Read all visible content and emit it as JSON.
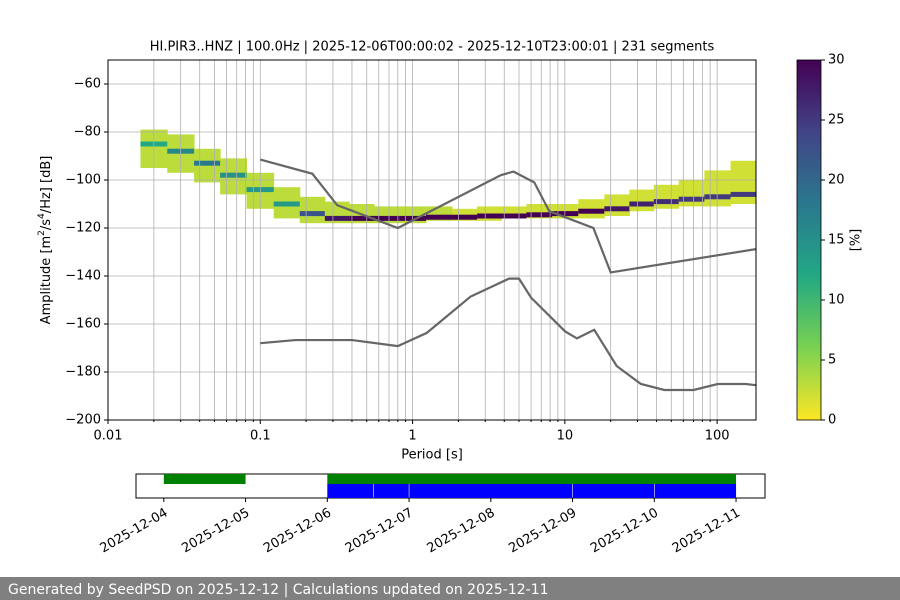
{
  "chart_data": [
    {
      "type": "ppsd",
      "title": "HI.PIR3..HNZ | 100.0Hz | 2025-12-06T00:00:02 - 2025-12-10T23:00:01 | 231 segments",
      "xlabel": "Period [s]",
      "ylabel": [
        "Amplitude [m",
        "2",
        "/s",
        "4",
        "/Hz] [dB]"
      ],
      "log_x": true,
      "grid": true,
      "xlim": [
        0.01,
        180
      ],
      "ylim": [
        -200,
        -50
      ],
      "xticks": [
        0.01,
        0.1,
        1,
        10,
        100
      ],
      "xminorticks": [
        0.02,
        0.03,
        0.04,
        0.05,
        0.06,
        0.07,
        0.08,
        0.09,
        0.2,
        0.3,
        0.4,
        0.5,
        0.6,
        0.7,
        0.8,
        0.9,
        2,
        3,
        4,
        5,
        6,
        7,
        8,
        9,
        20,
        30,
        40,
        50,
        60,
        70,
        80,
        90
      ],
      "yticks": [
        {
          "value": -200,
          "label": "−200"
        },
        {
          "value": -180,
          "label": "−180"
        },
        {
          "value": -160,
          "label": "−160"
        },
        {
          "value": -140,
          "label": "−140"
        },
        {
          "value": -120,
          "label": "−120"
        },
        {
          "value": -100,
          "label": "−100"
        },
        {
          "value": -80,
          "label": "−80"
        },
        {
          "value": -60,
          "label": "−60"
        }
      ],
      "colormap": [
        "#fde725",
        "#7ad151",
        "#22a884",
        "#2a788e",
        "#414487",
        "#440154"
      ],
      "colorbar": {
        "label": "[%]",
        "clim": [
          0,
          30
        ],
        "ticks": [
          0,
          5,
          10,
          15,
          20,
          25,
          30
        ]
      },
      "heatmap": {
        "periods": [
          0.02,
          0.03,
          0.045,
          0.066,
          0.1,
          0.15,
          0.22,
          0.32,
          0.46,
          0.68,
          1,
          1.5,
          2.2,
          3.2,
          4.6,
          6.8,
          10,
          15,
          22,
          32,
          46,
          68,
          100,
          150
        ],
        "low": [
          -95,
          -97,
          -101,
          -106,
          -112,
          -116,
          -118,
          -118,
          -118,
          -118,
          -118,
          -117,
          -117,
          -117,
          -116,
          -116,
          -116,
          -116,
          -115,
          -113,
          -112,
          -111,
          -111,
          -110
        ],
        "high": [
          -79,
          -81,
          -87,
          -91,
          -97,
          -103,
          -107,
          -109,
          -110,
          -111,
          -111,
          -111,
          -112,
          -111,
          -111,
          -110,
          -110,
          -108,
          -106,
          -104,
          -102,
          -100,
          -96,
          -92
        ],
        "band_pct": [
          3,
          3,
          3,
          3,
          3,
          3,
          3,
          3,
          3,
          3,
          3,
          3,
          2,
          2,
          2,
          2,
          2,
          2,
          2,
          2,
          2,
          2,
          2,
          2
        ],
        "mode": [
          -85,
          -88,
          -93,
          -98,
          -104,
          -110,
          -114,
          -116,
          -116,
          -116,
          -116,
          -115.5,
          -115.5,
          -115,
          -115,
          -114.5,
          -114,
          -113,
          -112,
          -110,
          -109,
          -108,
          -107,
          -106
        ],
        "mode_pct": [
          12,
          16,
          18,
          15,
          14,
          14,
          22,
          28,
          30,
          30,
          30,
          30,
          30,
          30,
          30,
          30,
          30,
          30,
          28,
          27,
          26,
          25,
          25,
          25
        ]
      },
      "series": [
        {
          "color": "#666666",
          "x": [
            0.1,
            0.22,
            0.32,
            0.8,
            3.8,
            4.6,
            6.3,
            7.9,
            15.4,
            20,
            180
          ],
          "values": [
            -91.5,
            -97.4,
            -110.5,
            -120,
            -98,
            -96.5,
            -101,
            -113,
            -120,
            -138.5,
            -128.8
          ]
        },
        {
          "color": "#666666",
          "x": [
            0.1,
            0.17,
            0.4,
            0.8,
            1.24,
            2.4,
            4.3,
            5,
            6,
            10,
            12,
            15.6,
            21.9,
            31.6,
            45,
            70,
            101,
            154,
            180
          ],
          "values": [
            -168,
            -166.7,
            -166.7,
            -169.2,
            -163.7,
            -148.6,
            -141.1,
            -141.1,
            -149,
            -163,
            -166,
            -162.4,
            -177.5,
            -185,
            -187.5,
            -187.5,
            -185,
            -185,
            -185.5
          ]
        }
      ]
    },
    {
      "type": "timeline",
      "xlim": [
        "2025-12-03T15:50",
        "2025-12-11T08:30"
      ],
      "xticks": [
        "2025-12-04",
        "2025-12-05",
        "2025-12-06",
        "2025-12-07",
        "2025-12-08",
        "2025-12-09",
        "2025-12-10",
        "2025-12-11"
      ],
      "coverage": {
        "color": "#008000",
        "segments": [
          [
            "2025-12-04T00:00",
            "2025-12-05T00:00"
          ],
          [
            "2025-12-06T00:00",
            "2025-12-11T00:00"
          ]
        ]
      },
      "data": {
        "color": "#0000ff",
        "segments": [
          [
            "2025-12-06T00:00",
            "2025-12-06T13:30"
          ],
          [
            "2025-12-06T13:40",
            "2025-12-06T23:55"
          ],
          [
            "2025-12-07T00:05",
            "2025-12-08T23:55"
          ],
          [
            "2025-12-09T00:05",
            "2025-12-09T23:55"
          ],
          [
            "2025-12-10T00:05",
            "2025-12-11T00:00"
          ]
        ]
      }
    }
  ],
  "footer": "Generated by SeedPSD on 2025-12-12 | Calculations updated on 2025-12-11"
}
